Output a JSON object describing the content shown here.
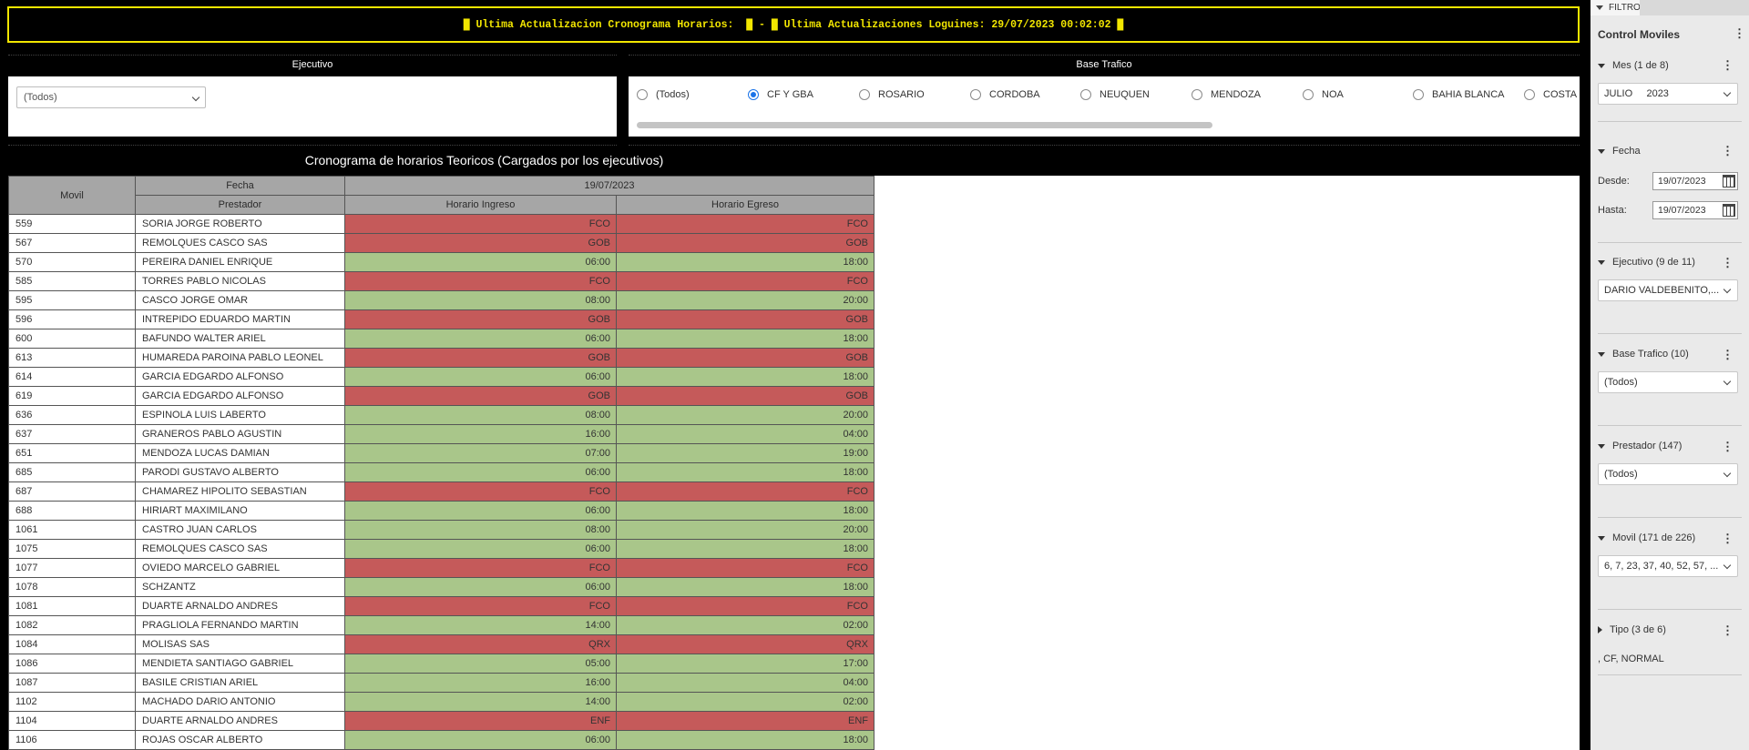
{
  "banner": {
    "text": "█ Ultima Actualizacion Cronograma Horarios:  █ - █ Ultima Actualizaciones Loguines: 29/07/2023 00:02:02 █"
  },
  "ejecutivo": {
    "title": "Ejecutivo",
    "value": "(Todos)"
  },
  "base_trafico": {
    "title": "Base Trafico",
    "options": [
      "(Todos)",
      "CF Y GBA",
      "ROSARIO",
      "CORDOBA",
      "NEUQUEN",
      "MENDOZA",
      "NOA",
      "BAHIA BLANCA",
      "COSTA"
    ],
    "selected": "CF Y GBA"
  },
  "table": {
    "title": "Cronograma de horarios Teoricos (Cargados por los ejecutivos)",
    "headers": {
      "movil": "Movil",
      "fecha": "Fecha",
      "date": "19/07/2023",
      "prestador": "Prestador",
      "ingreso": "Horario Ingreso",
      "egreso": "Horario Egreso"
    },
    "rows": [
      {
        "movil": "559",
        "prestador": "SORIA JORGE ROBERTO",
        "ingreso": "FCO",
        "egreso": "FCO",
        "status": "red"
      },
      {
        "movil": "567",
        "prestador": "REMOLQUES CASCO SAS",
        "ingreso": "GOB",
        "egreso": "GOB",
        "status": "red"
      },
      {
        "movil": "570",
        "prestador": "PEREIRA DANIEL ENRIQUE",
        "ingreso": "06:00",
        "egreso": "18:00",
        "status": "green"
      },
      {
        "movil": "585",
        "prestador": "TORRES PABLO NICOLAS",
        "ingreso": "FCO",
        "egreso": "FCO",
        "status": "red"
      },
      {
        "movil": "595",
        "prestador": "CASCO JORGE OMAR",
        "ingreso": "08:00",
        "egreso": "20:00",
        "status": "green"
      },
      {
        "movil": "596",
        "prestador": "INTREPIDO EDUARDO MARTIN",
        "ingreso": "GOB",
        "egreso": "GOB",
        "status": "red"
      },
      {
        "movil": "600",
        "prestador": "BAFUNDO WALTER ARIEL",
        "ingreso": "06:00",
        "egreso": "18:00",
        "status": "green"
      },
      {
        "movil": "613",
        "prestador": "HUMAREDA PAROINA PABLO LEONEL",
        "ingreso": "GOB",
        "egreso": "GOB",
        "status": "red"
      },
      {
        "movil": "614",
        "prestador": "GARCIA EDGARDO ALFONSO",
        "ingreso": "06:00",
        "egreso": "18:00",
        "status": "green"
      },
      {
        "movil": "619",
        "prestador": "GARCIA EDGARDO ALFONSO",
        "ingreso": "GOB",
        "egreso": "GOB",
        "status": "red"
      },
      {
        "movil": "636",
        "prestador": "ESPINOLA LUIS LABERTO",
        "ingreso": "08:00",
        "egreso": "20:00",
        "status": "green"
      },
      {
        "movil": "637",
        "prestador": "GRANEROS PABLO AGUSTIN",
        "ingreso": "16:00",
        "egreso": "04:00",
        "status": "green"
      },
      {
        "movil": "651",
        "prestador": "MENDOZA LUCAS DAMIAN",
        "ingreso": "07:00",
        "egreso": "19:00",
        "status": "green"
      },
      {
        "movil": "685",
        "prestador": "PARODI GUSTAVO ALBERTO",
        "ingreso": "06:00",
        "egreso": "18:00",
        "status": "green"
      },
      {
        "movil": "687",
        "prestador": "CHAMAREZ HIPOLITO SEBASTIAN",
        "ingreso": "FCO",
        "egreso": "FCO",
        "status": "red"
      },
      {
        "movil": "688",
        "prestador": "HIRIART MAXIMILANO",
        "ingreso": "06:00",
        "egreso": "18:00",
        "status": "green"
      },
      {
        "movil": "1061",
        "prestador": "CASTRO JUAN CARLOS",
        "ingreso": "08:00",
        "egreso": "20:00",
        "status": "green"
      },
      {
        "movil": "1075",
        "prestador": "REMOLQUES CASCO SAS",
        "ingreso": "06:00",
        "egreso": "18:00",
        "status": "green"
      },
      {
        "movil": "1077",
        "prestador": "OVIEDO MARCELO GABRIEL",
        "ingreso": "FCO",
        "egreso": "FCO",
        "status": "red"
      },
      {
        "movil": "1078",
        "prestador": "SCHZANTZ",
        "ingreso": "06:00",
        "egreso": "18:00",
        "status": "green"
      },
      {
        "movil": "1081",
        "prestador": "DUARTE ARNALDO ANDRES",
        "ingreso": "FCO",
        "egreso": "FCO",
        "status": "red"
      },
      {
        "movil": "1082",
        "prestador": "PRAGLIOLA FERNANDO MARTIN",
        "ingreso": "14:00",
        "egreso": "02:00",
        "status": "green"
      },
      {
        "movil": "1084",
        "prestador": "MOLISAS SAS",
        "ingreso": "QRX",
        "egreso": "QRX",
        "status": "red"
      },
      {
        "movil": "1086",
        "prestador": "MENDIETA SANTIAGO GABRIEL",
        "ingreso": "05:00",
        "egreso": "17:00",
        "status": "green"
      },
      {
        "movil": "1087",
        "prestador": "BASILE CRISTIAN ARIEL",
        "ingreso": "16:00",
        "egreso": "04:00",
        "status": "green"
      },
      {
        "movil": "1102",
        "prestador": "MACHADO DARIO ANTONIO",
        "ingreso": "14:00",
        "egreso": "02:00",
        "status": "green"
      },
      {
        "movil": "1104",
        "prestador": "DUARTE ARNALDO ANDRES",
        "ingreso": "ENF",
        "egreso": "ENF",
        "status": "red"
      },
      {
        "movil": "1106",
        "prestador": "ROJAS OSCAR ALBERTO",
        "ingreso": "06:00",
        "egreso": "18:00",
        "status": "green"
      }
    ]
  },
  "filters": {
    "tab_label": "FILTRO",
    "title": "Control Moviles",
    "mes": {
      "label": "Mes (1 de 8)",
      "value": "JULIO     2023"
    },
    "fecha": {
      "label": "Fecha",
      "desde_label": "Desde:",
      "desde": "19/07/2023",
      "hasta_label": "Hasta:",
      "hasta": "19/07/2023"
    },
    "ejecutivo": {
      "label": "Ejecutivo (9 de 11)",
      "value": "DARIO VALDEBENITO,..."
    },
    "base_trafico": {
      "label": "Base Trafico (10)",
      "value": "(Todos)"
    },
    "prestador": {
      "label": "Prestador (147)",
      "value": "(Todos)"
    },
    "movil": {
      "label": "Movil (171 de 226)",
      "value": "6, 7, 23, 37, 40, 52, 57, ..."
    },
    "tipo": {
      "label": "Tipo (3 de 6)",
      "value": ", CF, NORMAL"
    }
  },
  "colors": {
    "red": "#c55a5a",
    "green": "#a9c68a",
    "banner": "#f2e600",
    "selected_radio": "#1a73e8"
  }
}
